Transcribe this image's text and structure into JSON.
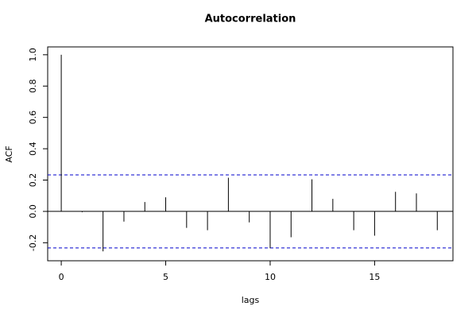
{
  "chart_data": {
    "type": "acf",
    "title": "Autocorrelation",
    "x_label": "lags",
    "y_label": "ACF",
    "x": [
      0,
      1,
      2,
      3,
      4,
      5,
      6,
      7,
      8,
      9,
      10,
      11,
      12,
      13,
      14,
      15,
      16,
      17,
      18
    ],
    "values": [
      1.0,
      -0.005,
      -0.255,
      -0.065,
      0.06,
      0.09,
      -0.105,
      -0.12,
      0.215,
      -0.07,
      -0.235,
      -0.165,
      0.205,
      0.08,
      -0.12,
      -0.155,
      0.125,
      0.115,
      -0.12
    ],
    "color": "#000000",
    "conf_bounds": [
      0.233,
      -0.233
    ],
    "conf_color": "#0000cc",
    "xlim": [
      -0.65,
      18.75
    ],
    "ylim": [
      -0.315,
      1.05
    ],
    "xticks": [
      0,
      5,
      10,
      15
    ],
    "yticks": [
      {
        "value": -0.2,
        "label": "-0.2"
      },
      {
        "value": 0,
        "label": "0.0"
      },
      {
        "value": 0.2,
        "label": "0.2"
      },
      {
        "value": 0.4,
        "label": "0.4"
      },
      {
        "value": 0.6,
        "label": "0.6"
      },
      {
        "value": 0.8,
        "label": "0.8"
      },
      {
        "value": 1,
        "label": "1.0"
      }
    ]
  }
}
